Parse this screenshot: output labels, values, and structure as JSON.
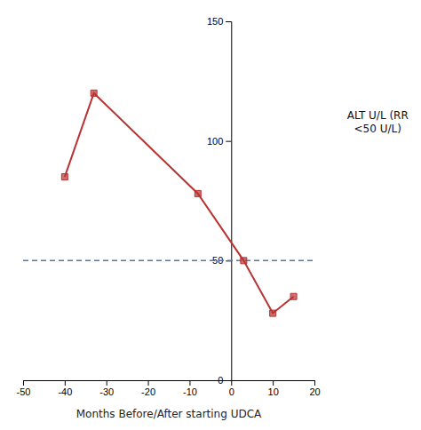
{
  "chart_data": {
    "type": "line",
    "x": [
      -40,
      -33,
      -8,
      3,
      10,
      15
    ],
    "values": [
      85,
      120,
      78,
      50,
      28,
      35
    ],
    "color": "#b83333",
    "marker": "square",
    "x_label": "Months Before/After starting UDCA",
    "y_label": "ALT U/L (RR\n<50 U/L)",
    "xlim": [
      -50,
      20
    ],
    "ylim": [
      0,
      150
    ],
    "xticks": [
      -50,
      -40,
      -30,
      -20,
      -10,
      0,
      10,
      20
    ],
    "yticks": [
      0,
      50,
      100,
      150
    ],
    "reference_lines": [
      {
        "y": 50,
        "color": "#5577aa",
        "line_style": "dashed"
      }
    ],
    "grid": false
  }
}
